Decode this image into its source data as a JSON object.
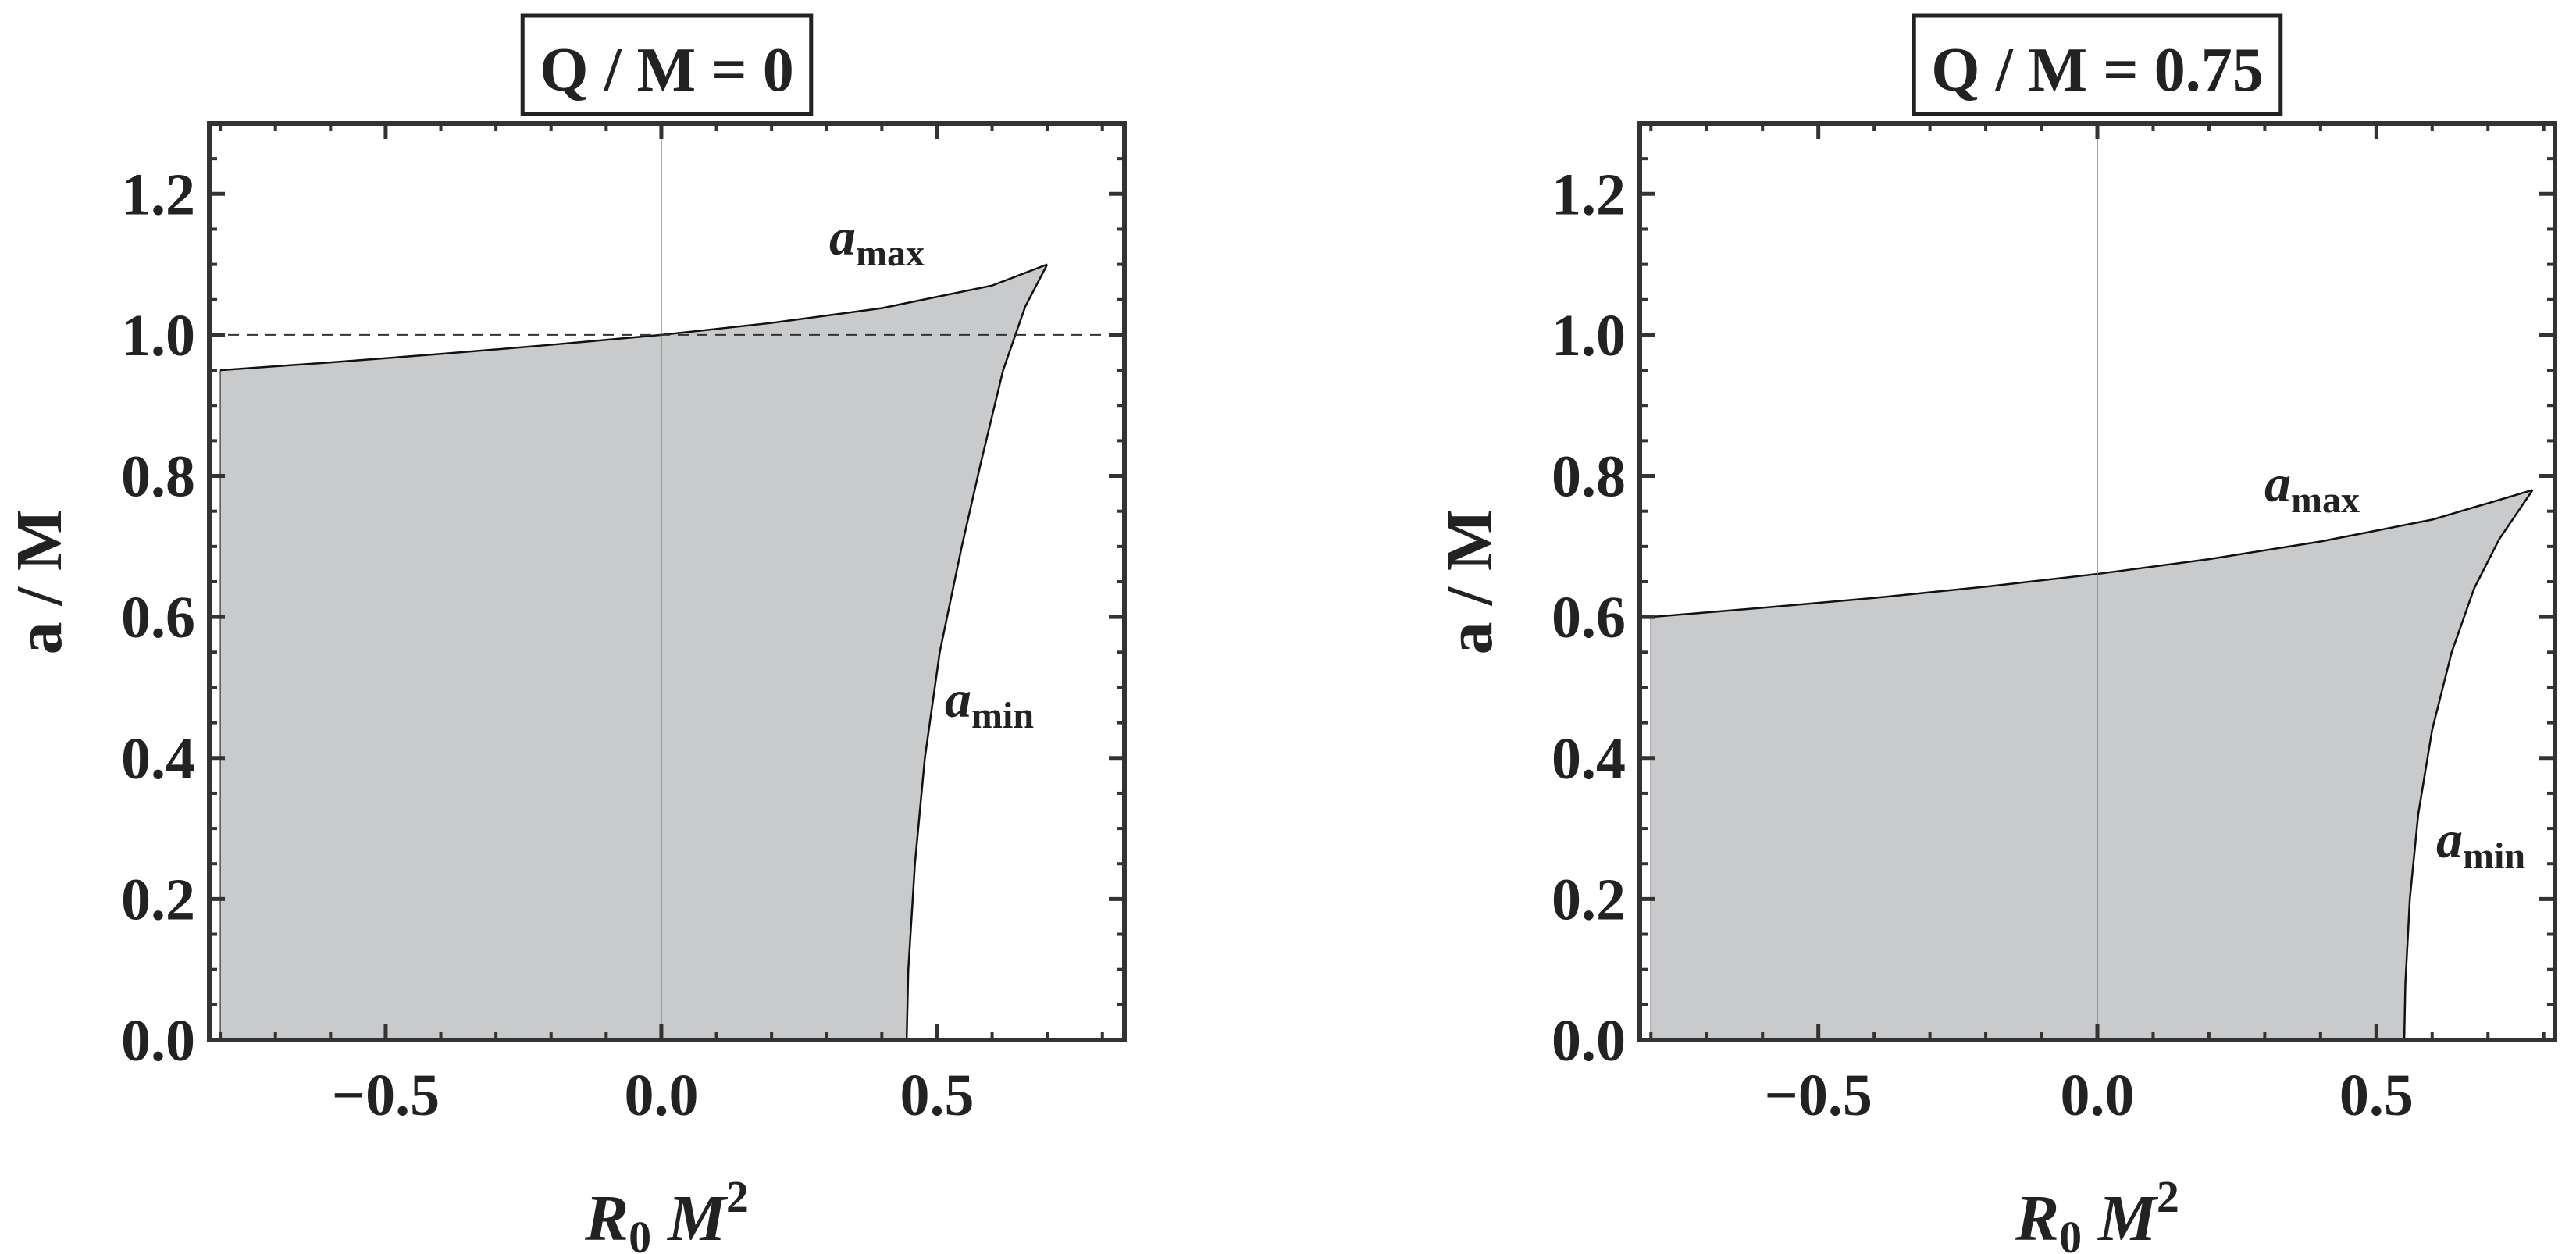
{
  "chart_data": [
    {
      "type": "area",
      "title": "Q / M = 0",
      "xlabel": {
        "base": "R",
        "sub": "0",
        "mid": " M",
        "sup": "2"
      },
      "ylabel": "a / M",
      "xlim": [
        -0.82,
        0.84
      ],
      "ylim": [
        0,
        1.3
      ],
      "x_ticks": [
        -0.5,
        0.0,
        0.5
      ],
      "x_tick_labels": [
        "−0.5",
        "0.0",
        "0.5"
      ],
      "y_ticks": [
        0,
        0.2,
        0.4,
        0.6,
        0.8,
        1.0,
        1.2
      ],
      "y_tick_labels": [
        "0.0",
        "0.2",
        "0.4",
        "0.6",
        "0.8",
        "1.0",
        "1.2"
      ],
      "reference_line": {
        "y": 1.0,
        "style": "dashed"
      },
      "vertical_line": {
        "x": 0.0
      },
      "grid": false,
      "series": [
        {
          "name": "amax",
          "label": {
            "base": "a",
            "sub": "max"
          },
          "x": [
            -0.8,
            -0.6,
            -0.4,
            -0.2,
            0.0,
            0.2,
            0.4,
            0.6,
            0.7
          ],
          "y": [
            0.95,
            0.961,
            0.973,
            0.986,
            1.0,
            1.017,
            1.038,
            1.07,
            1.1
          ]
        },
        {
          "name": "amin",
          "label": {
            "base": "a",
            "sub": "min"
          },
          "x": [
            0.445,
            0.448,
            0.46,
            0.478,
            0.505,
            0.545,
            0.58,
            0.62,
            0.66,
            0.7
          ],
          "y": [
            0.0,
            0.1,
            0.25,
            0.4,
            0.55,
            0.7,
            0.82,
            0.95,
            1.04,
            1.1
          ]
        }
      ]
    },
    {
      "type": "area",
      "title": "Q / M = 0.75",
      "xlabel": {
        "base": "R",
        "sub": "0",
        "mid": " M",
        "sup": "2"
      },
      "ylabel": "a / M",
      "xlim": [
        -0.82,
        0.82
      ],
      "ylim": [
        0,
        1.3
      ],
      "x_ticks": [
        -0.5,
        0.0,
        0.5
      ],
      "x_tick_labels": [
        "−0.5",
        "0.0",
        "0.5"
      ],
      "y_ticks": [
        0,
        0.2,
        0.4,
        0.6,
        0.8,
        1.0,
        1.2
      ],
      "y_tick_labels": [
        "0.0",
        "0.2",
        "0.4",
        "0.6",
        "0.8",
        "1.0",
        "1.2"
      ],
      "vertical_line": {
        "x": 0.0
      },
      "grid": false,
      "series": [
        {
          "name": "amax",
          "label": {
            "base": "a",
            "sub": "max"
          },
          "x": [
            -0.8,
            -0.6,
            -0.4,
            -0.2,
            0.0,
            0.2,
            0.4,
            0.6,
            0.78
          ],
          "y": [
            0.6,
            0.613,
            0.627,
            0.643,
            0.661,
            0.682,
            0.707,
            0.738,
            0.78
          ]
        },
        {
          "name": "amin",
          "label": {
            "base": "a",
            "sub": "min"
          },
          "x": [
            0.55,
            0.552,
            0.56,
            0.575,
            0.6,
            0.635,
            0.675,
            0.72,
            0.78
          ],
          "y": [
            0.0,
            0.08,
            0.2,
            0.32,
            0.44,
            0.55,
            0.64,
            0.71,
            0.78
          ]
        }
      ]
    }
  ]
}
